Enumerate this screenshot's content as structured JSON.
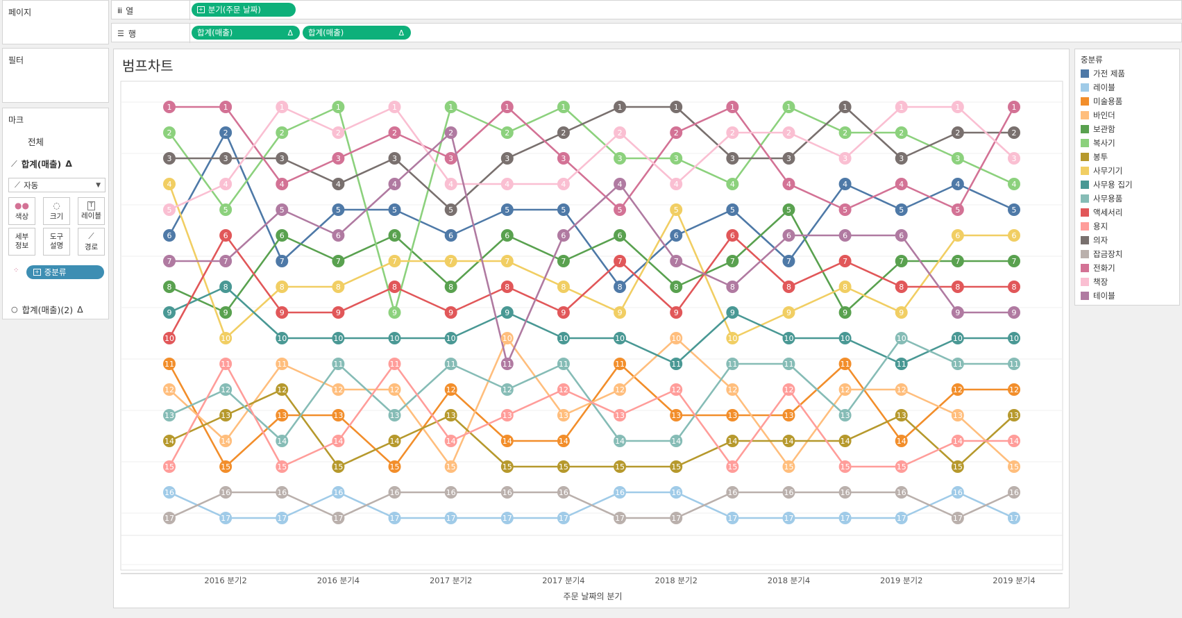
{
  "left": {
    "pages_label": "페이지",
    "filters_label": "필터",
    "marks": {
      "label": "마크",
      "all_label": "전체",
      "measure_label": "합계(매출)",
      "delta": "Δ",
      "mark_type": "자동",
      "buttons": [
        {
          "label": "색상",
          "icon": "color-icon"
        },
        {
          "label": "크기",
          "icon": "size-icon"
        },
        {
          "label": "레이블",
          "icon": "label-icon"
        },
        {
          "label": "세부\n정보",
          "icon": "detail-icon"
        },
        {
          "label": "도구\n설명",
          "icon": "tooltip-icon"
        },
        {
          "label": "경로",
          "icon": "path-icon"
        }
      ],
      "color_pill": "중분류",
      "measure2_label": "합계(매출)(2)"
    }
  },
  "shelves": {
    "columns_label": "열",
    "rows_label": "행",
    "columns_pill": "분기(주문 날짜)",
    "rows_pills": [
      "합계(매출)",
      "합계(매출)"
    ],
    "delta": "Δ"
  },
  "sheet": {
    "title": "범프차트"
  },
  "legend": {
    "title": "중분류",
    "items": [
      {
        "label": "가전 제품",
        "color": "#4e79a7"
      },
      {
        "label": "레이블",
        "color": "#a0cbe8"
      },
      {
        "label": "미술용품",
        "color": "#f28e2b"
      },
      {
        "label": "바인더",
        "color": "#ffbe7d"
      },
      {
        "label": "보관함",
        "color": "#59a14f"
      },
      {
        "label": "복사기",
        "color": "#8cd17d"
      },
      {
        "label": "봉투",
        "color": "#b6992d"
      },
      {
        "label": "사무기기",
        "color": "#f1ce63"
      },
      {
        "label": "사무용 집기",
        "color": "#499894"
      },
      {
        "label": "사무용품",
        "color": "#86bcb6"
      },
      {
        "label": "액세서리",
        "color": "#e15759"
      },
      {
        "label": "용지",
        "color": "#ff9d9a"
      },
      {
        "label": "의자",
        "color": "#79706e"
      },
      {
        "label": "잡금장치",
        "color": "#bab0ac"
      },
      {
        "label": "전화기",
        "color": "#d37295"
      },
      {
        "label": "책장",
        "color": "#fabfd2"
      },
      {
        "label": "테이블",
        "color": "#b07aa1"
      }
    ]
  },
  "chart_data": {
    "type": "line",
    "xlabel": "주문 날짜의 분기",
    "x": [
      "2016 분기1",
      "2016 분기2",
      "2016 분기3",
      "2016 분기4",
      "2017 분기1",
      "2017 분기2",
      "2017 분기3",
      "2017 분기4",
      "2018 분기1",
      "2018 분기2",
      "2018 분기3",
      "2018 분기4",
      "2019 분기1",
      "2019 분기2",
      "2019 분기3",
      "2019 분기4"
    ],
    "x_tick_labels": [
      "2016 분기2",
      "2016 분기4",
      "2017 분기2",
      "2017 분기4",
      "2018 분기2",
      "2018 분기4",
      "2019 분기2",
      "2019 분기4"
    ],
    "y_reversed": true,
    "ylim": [
      1,
      17
    ],
    "series": [
      {
        "name": "가전 제품",
        "values": [
          6,
          2,
          7,
          5,
          5,
          6,
          5,
          5,
          8,
          6,
          5,
          7,
          4,
          5,
          4,
          5
        ]
      },
      {
        "name": "레이블",
        "values": [
          16,
          17,
          17,
          16,
          17,
          17,
          17,
          17,
          16,
          16,
          17,
          17,
          17,
          17,
          16,
          17
        ]
      },
      {
        "name": "미술용품",
        "values": [
          11,
          15,
          13,
          13,
          15,
          12,
          14,
          14,
          11,
          13,
          13,
          13,
          11,
          14,
          12,
          12
        ]
      },
      {
        "name": "바인더",
        "values": [
          12,
          14,
          11,
          12,
          12,
          15,
          10,
          13,
          12,
          10,
          12,
          15,
          12,
          12,
          13,
          15
        ]
      },
      {
        "name": "보관함",
        "values": [
          8,
          9,
          6,
          7,
          6,
          8,
          6,
          7,
          6,
          8,
          7,
          5,
          9,
          7,
          7,
          7
        ]
      },
      {
        "name": "복사기",
        "values": [
          2,
          5,
          2,
          1,
          9,
          1,
          2,
          1,
          3,
          3,
          4,
          1,
          2,
          2,
          3,
          4
        ]
      },
      {
        "name": "봉투",
        "values": [
          14,
          13,
          12,
          15,
          14,
          13,
          15,
          15,
          15,
          15,
          14,
          14,
          14,
          13,
          15,
          13
        ]
      },
      {
        "name": "사무기기",
        "values": [
          4,
          10,
          8,
          8,
          7,
          7,
          7,
          8,
          9,
          5,
          10,
          9,
          8,
          9,
          6,
          6
        ]
      },
      {
        "name": "사무용 집기",
        "values": [
          9,
          8,
          10,
          10,
          10,
          10,
          9,
          10,
          10,
          11,
          9,
          10,
          10,
          11,
          10,
          10
        ]
      },
      {
        "name": "사무용품",
        "values": [
          13,
          12,
          14,
          11,
          13,
          11,
          12,
          11,
          14,
          14,
          11,
          11,
          13,
          10,
          11,
          11
        ]
      },
      {
        "name": "액세서리",
        "values": [
          10,
          6,
          9,
          9,
          8,
          9,
          8,
          9,
          7,
          9,
          6,
          8,
          7,
          8,
          8,
          8
        ]
      },
      {
        "name": "용지",
        "values": [
          15,
          11,
          15,
          14,
          11,
          14,
          13,
          12,
          13,
          12,
          15,
          12,
          15,
          15,
          14,
          14
        ]
      },
      {
        "name": "의자",
        "values": [
          3,
          3,
          3,
          4,
          3,
          5,
          3,
          2,
          1,
          1,
          3,
          3,
          1,
          3,
          2,
          2
        ]
      },
      {
        "name": "잡금장치",
        "values": [
          17,
          16,
          16,
          17,
          16,
          16,
          16,
          16,
          17,
          17,
          16,
          16,
          16,
          16,
          17,
          16
        ]
      },
      {
        "name": "전화기",
        "values": [
          1,
          1,
          4,
          3,
          2,
          3,
          1,
          3,
          5,
          2,
          1,
          4,
          5,
          4,
          5,
          1
        ]
      },
      {
        "name": "책장",
        "values": [
          5,
          4,
          1,
          2,
          1,
          4,
          4,
          4,
          2,
          4,
          2,
          2,
          3,
          1,
          1,
          3
        ]
      },
      {
        "name": "테이블",
        "values": [
          7,
          7,
          5,
          6,
          4,
          2,
          11,
          6,
          4,
          7,
          8,
          6,
          6,
          6,
          9,
          9
        ]
      }
    ]
  }
}
